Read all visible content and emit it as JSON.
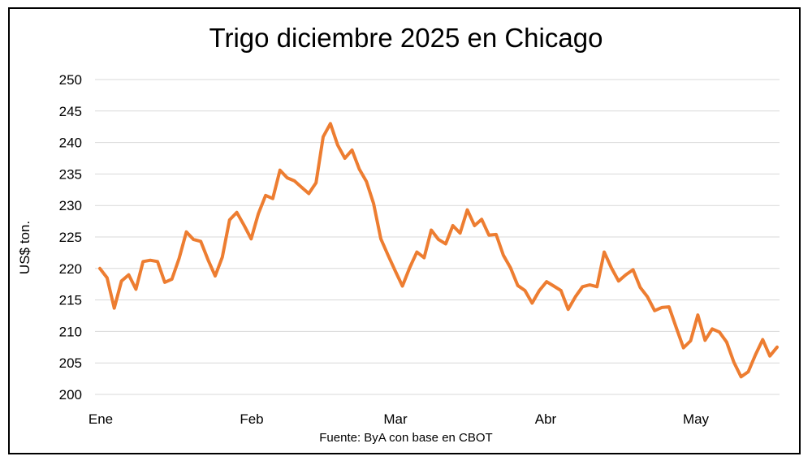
{
  "chart_data": {
    "type": "line",
    "title": "Trigo diciembre 2025 en Chicago",
    "ylabel": "US$ ton.",
    "source": "Fuente: ByA con base en CBOT",
    "ylim": [
      200,
      250
    ],
    "yticks": [
      "250",
      "245",
      "240",
      "235",
      "230",
      "225",
      "220",
      "215",
      "210",
      "205",
      "200"
    ],
    "xticks": [
      "Ene",
      "Feb",
      "Mar",
      "Abr",
      "May"
    ],
    "grid": true,
    "line_color": "#ED7D31",
    "series": [
      {
        "values": [
          220.0,
          218.5,
          213.7,
          218.0,
          219.0,
          216.7,
          221.1,
          221.3,
          221.1,
          217.8,
          218.3,
          221.6,
          225.8,
          224.6,
          224.3,
          221.4,
          218.8,
          221.8,
          227.7,
          228.9,
          226.9,
          224.7,
          228.7,
          231.6,
          231.1,
          235.6,
          234.4,
          233.9,
          232.9,
          231.9,
          233.6,
          240.9,
          243.0,
          239.6,
          237.5,
          238.8,
          235.8,
          233.8,
          230.3,
          224.7,
          222.1,
          219.6,
          217.2,
          220.1,
          222.6,
          221.7,
          226.1,
          224.6,
          223.9,
          226.8,
          225.6,
          229.3,
          226.8,
          227.8,
          225.3,
          225.4,
          222.1,
          220.1,
          217.3,
          216.5,
          214.5,
          216.5,
          217.9,
          217.2,
          216.5,
          213.5,
          215.5,
          217.1,
          217.4,
          217.1,
          222.6,
          220.1,
          218.0,
          219.0,
          219.8,
          217.0,
          215.5,
          213.3,
          213.8,
          213.9,
          210.6,
          207.4,
          208.5,
          212.6,
          208.6,
          210.4,
          209.9,
          208.3,
          205.1,
          202.8,
          203.6,
          206.3,
          208.7,
          206.1,
          207.5
        ]
      }
    ]
  }
}
